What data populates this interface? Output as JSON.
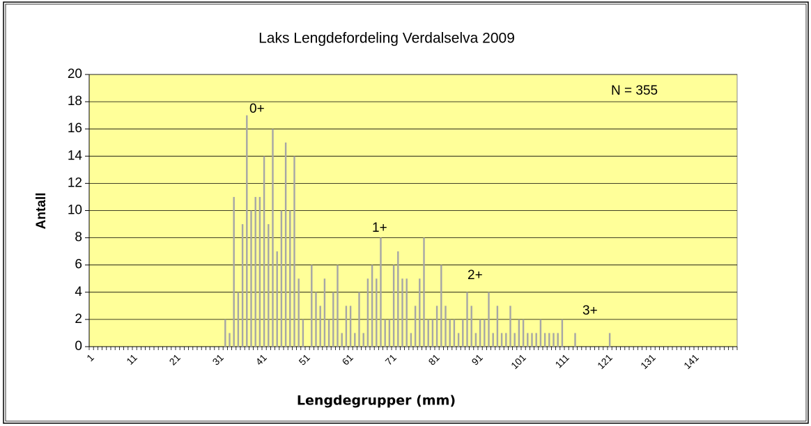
{
  "chart_data": {
    "type": "bar",
    "title": "Laks Lengdefordeling Verdalselva 2009",
    "x_label": "Lengdegrupper (mm)",
    "y_label": "Antall",
    "annotations": [
      "0+",
      "1+",
      "2+",
      "3+",
      "N = 355"
    ],
    "categories": [
      "1",
      null,
      null,
      null,
      null,
      null,
      null,
      null,
      null,
      null,
      "11",
      null,
      null,
      null,
      null,
      null,
      null,
      null,
      null,
      null,
      "21",
      null,
      null,
      null,
      null,
      null,
      null,
      null,
      null,
      null,
      "31",
      null,
      null,
      null,
      null,
      null,
      null,
      null,
      null,
      null,
      "41",
      null,
      null,
      null,
      null,
      null,
      null,
      null,
      null,
      null,
      "51",
      null,
      null,
      null,
      null,
      null,
      null,
      null,
      null,
      null,
      "61",
      null,
      null,
      null,
      null,
      null,
      null,
      null,
      null,
      null,
      "71",
      null,
      null,
      null,
      null,
      null,
      null,
      null,
      null,
      null,
      "81",
      null,
      null,
      null,
      null,
      null,
      null,
      null,
      null,
      null,
      "91",
      null,
      null,
      null,
      null,
      null,
      null,
      null,
      null,
      null,
      "101",
      null,
      null,
      null,
      null,
      null,
      null,
      null,
      null,
      null,
      "111",
      null,
      null,
      null,
      null,
      null,
      null,
      null,
      null,
      null,
      "121",
      null,
      null,
      null,
      null,
      null,
      null,
      null,
      null,
      null,
      "131",
      null,
      null,
      null,
      null,
      null,
      null,
      null,
      null,
      null,
      "141",
      null,
      null,
      null,
      null,
      null,
      null,
      null,
      null,
      null
    ],
    "values": [
      0,
      0,
      0,
      0,
      0,
      0,
      0,
      0,
      0,
      0,
      0,
      0,
      0,
      0,
      0,
      0,
      0,
      0,
      0,
      0,
      0,
      0,
      0,
      0,
      0,
      0,
      0,
      0,
      0,
      0,
      0,
      2,
      1,
      11,
      4,
      9,
      17,
      10,
      11,
      11,
      14,
      9,
      16,
      7,
      10,
      15,
      10,
      14,
      5,
      2,
      0,
      6,
      4,
      3,
      5,
      2,
      4,
      6,
      1,
      3,
      3,
      1,
      4,
      1,
      5,
      6,
      5,
      8,
      2,
      2,
      6,
      7,
      5,
      5,
      1,
      3,
      5,
      8,
      2,
      2,
      3,
      6,
      3,
      2,
      2,
      1,
      2,
      4,
      3,
      1,
      2,
      2,
      4,
      1,
      3,
      1,
      1,
      3,
      1,
      2,
      2,
      1,
      1,
      1,
      2,
      1,
      1,
      1,
      1,
      2,
      0,
      0,
      1,
      0,
      0,
      0,
      0,
      0,
      0,
      0,
      1,
      0,
      0,
      0,
      0,
      0,
      0,
      0,
      0,
      0,
      0,
      0,
      0,
      0,
      0,
      0,
      0,
      0,
      0,
      0,
      0,
      0,
      0,
      0,
      0,
      0,
      0,
      0,
      0,
      0
    ],
    "color": "#a6a6a6",
    "background": "#ffff99",
    "ylim": [
      0,
      20
    ],
    "yticks": [
      0,
      2,
      4,
      6,
      8,
      10,
      12,
      14,
      16,
      18,
      20
    ],
    "grid": true
  }
}
